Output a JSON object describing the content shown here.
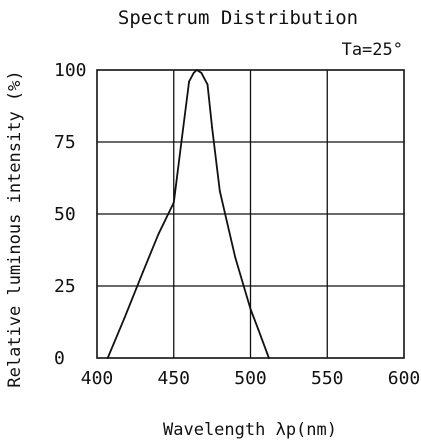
{
  "chart_data": {
    "type": "line",
    "title": "Spectrum Distribution",
    "xlabel": "Wavelength λp(nm)",
    "ylabel": "Relative luminous intensity (%)",
    "annotation": "Ta=25°",
    "xlim": [
      400,
      600
    ],
    "ylim": [
      0,
      100
    ],
    "x_ticks": [
      "400",
      "450",
      "500",
      "550",
      "600"
    ],
    "y_ticks": [
      "0",
      "25",
      "50",
      "75",
      "100"
    ],
    "grid": true,
    "line_color": "#111111",
    "series": [
      {
        "x": [
          407,
          418,
          430,
          440,
          450,
          455,
          460,
          463,
          465,
          468,
          472,
          475,
          480,
          490,
          500,
          505,
          512
        ],
        "y": [
          0,
          14,
          30,
          43,
          54,
          75,
          96,
          99,
          100,
          99,
          95,
          80,
          58,
          35,
          17,
          10,
          0
        ]
      }
    ]
  }
}
